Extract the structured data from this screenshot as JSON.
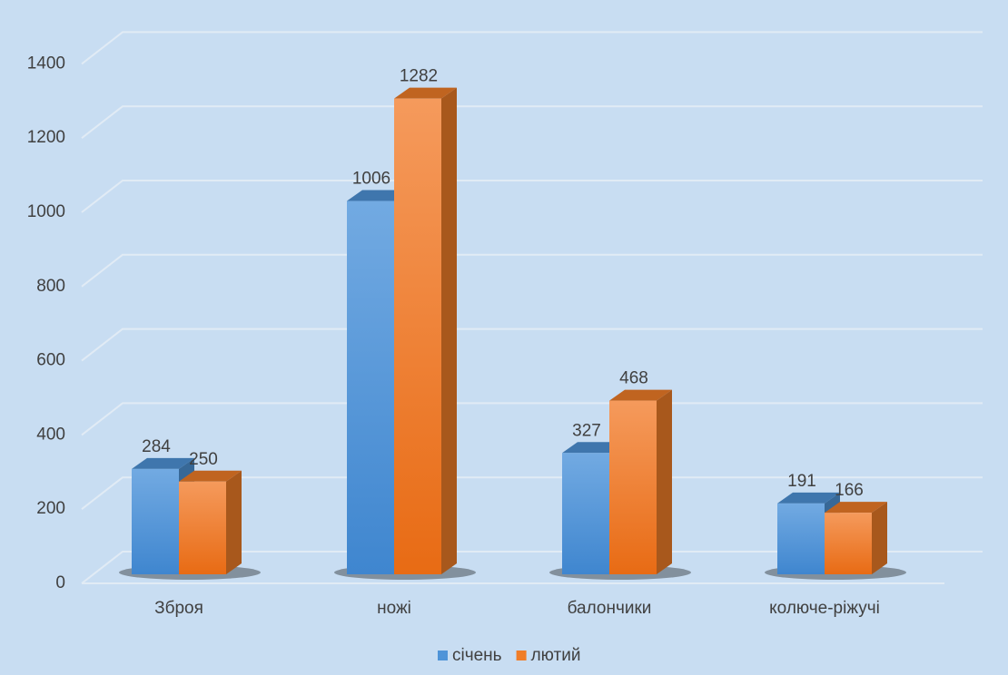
{
  "chart_data": {
    "type": "bar3d",
    "categories": [
      "Зброя",
      "ножі",
      "балончики",
      "колюче-ріжучі"
    ],
    "series": [
      {
        "name": "січень",
        "color": "#4f94d8",
        "values": [
          284,
          1006,
          327,
          191
        ]
      },
      {
        "name": "лютий",
        "color": "#f07d28",
        "values": [
          250,
          1282,
          468,
          166
        ]
      }
    ],
    "ylim": [
      0,
      1400
    ],
    "yticks": [
      0,
      200,
      400,
      600,
      800,
      1000,
      1200,
      1400
    ],
    "grid": true,
    "legend": "bottom"
  }
}
